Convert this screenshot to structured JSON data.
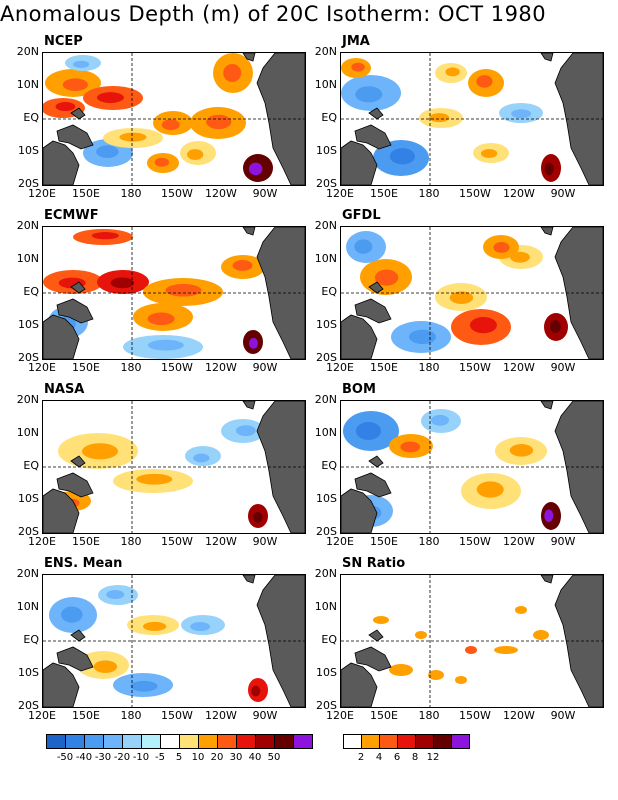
{
  "title": "Anomalous Depth (m) of 20C Isotherm: OCT 1980",
  "x_ticks": [
    "120E",
    "150E",
    "180",
    "150W",
    "120W",
    "90W"
  ],
  "y_ticks": [
    "20N",
    "10N",
    "EQ",
    "10S",
    "20S"
  ],
  "panels": [
    {
      "name": "NCEP"
    },
    {
      "name": "JMA"
    },
    {
      "name": "ECMWF"
    },
    {
      "name": "GFDL"
    },
    {
      "name": "NASA"
    },
    {
      "name": "BOM"
    },
    {
      "name": "ENS. Mean"
    },
    {
      "name": "SN Ratio"
    }
  ],
  "chart_data": {
    "type": "heatmap",
    "title": "Anomalous Depth (m) of 20C Isotherm: OCT 1980",
    "x_range": [
      "120E",
      "70W"
    ],
    "y_range": [
      "20S",
      "20N"
    ],
    "grid": "dashed lines at 180 and EQ",
    "land_color": "#5a5a5a",
    "anomaly_colorbar": {
      "labels": [
        "-50",
        "-40",
        "-30",
        "-20",
        "-10",
        "-5",
        "5",
        "10",
        "20",
        "30",
        "40",
        "50"
      ],
      "colors": [
        "#1e64c8",
        "#3282e6",
        "#4b9bf0",
        "#6eb4fa",
        "#96d2fa",
        "#b4f0fa",
        "#ffffff",
        "#ffe178",
        "#ffa000",
        "#ff5a14",
        "#e6140a",
        "#a00000",
        "#640000",
        "#8c14dc"
      ]
    },
    "sn_colorbar": {
      "labels": [
        "2",
        "4",
        "6",
        "8",
        "12"
      ],
      "colors": [
        "#ffffff",
        "#ffa000",
        "#ff5a14",
        "#e6140a",
        "#a00000",
        "#640000",
        "#8c14dc"
      ]
    }
  }
}
